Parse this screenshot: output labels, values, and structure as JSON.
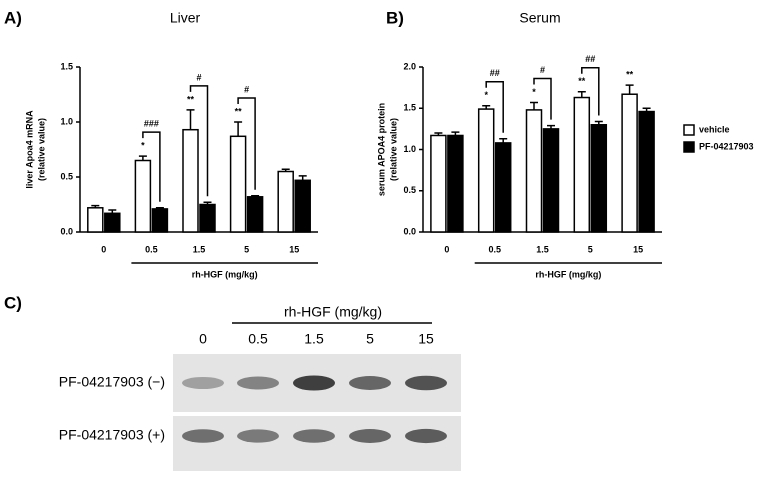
{
  "chart_data": [
    {
      "type": "bar",
      "panel": "A)",
      "title": "Liver",
      "ylabel": [
        "liver Apoa4 mRNA",
        "(relative value)"
      ],
      "xlabel": "rh-HGF (mg/kg)",
      "categories": [
        "0",
        "0.5",
        "1.5",
        "5",
        "15"
      ],
      "series": [
        {
          "color": "#ffffff",
          "values": [
            0.22,
            0.65,
            0.93,
            0.87,
            0.55
          ],
          "errors": [
            0.02,
            0.04,
            0.18,
            0.13,
            0.02
          ]
        },
        {
          "color": "#000000",
          "values": [
            0.17,
            0.21,
            0.25,
            0.32,
            0.47
          ],
          "errors": [
            0.03,
            0.01,
            0.02,
            0.01,
            0.04
          ]
        }
      ],
      "stars": [
        null,
        "*",
        "**",
        "**",
        null
      ],
      "hashes": [
        null,
        "###",
        "#",
        "#",
        null
      ],
      "ylim": [
        0,
        1.5
      ],
      "yticks": [
        {
          "value": 0,
          "label": "0.0"
        },
        0.5,
        {
          "value": 1,
          "label": "1.0"
        },
        1.5
      ]
    },
    {
      "type": "bar",
      "panel": "B)",
      "title": "Serum",
      "ylabel": [
        "serum APOA4 protein",
        "(relative value)"
      ],
      "xlabel": "rh-HGF (mg/kg)",
      "categories": [
        "0",
        "0.5",
        "1.5",
        "5",
        "15"
      ],
      "series": [
        {
          "name": "vehicle",
          "color": "#ffffff",
          "values": [
            1.17,
            1.49,
            1.48,
            1.63,
            1.67
          ],
          "errors": [
            0.03,
            0.04,
            0.09,
            0.07,
            0.11
          ]
        },
        {
          "name": "PF-04217903",
          "color": "#000000",
          "values": [
            1.17,
            1.08,
            1.25,
            1.3,
            1.46
          ],
          "errors": [
            0.04,
            0.05,
            0.04,
            0.04,
            0.04
          ]
        }
      ],
      "stars": [
        null,
        "*",
        "*",
        "**",
        "**"
      ],
      "hashes": [
        null,
        "##",
        "#",
        "##",
        null
      ],
      "legend": "right",
      "ylim": [
        0,
        2
      ],
      "yticks": [
        {
          "value": 0,
          "label": "0.0"
        },
        0.5,
        {
          "value": 1,
          "label": "1.0"
        },
        1.5,
        {
          "value": 2,
          "label": "2.0"
        }
      ]
    }
  ],
  "blot": {
    "panel": "C)",
    "header": "rh-HGF (mg/kg)",
    "lanes": [
      "0",
      "0.5",
      "1.5",
      "5",
      "15"
    ],
    "rows": [
      "PF-04217903 (−)",
      "PF-04217903 (+)"
    ]
  }
}
